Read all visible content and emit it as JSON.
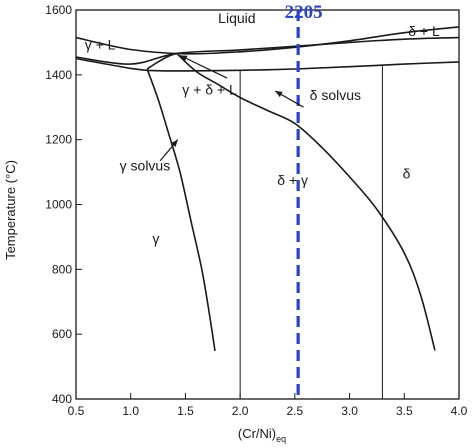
{
  "chart_data": {
    "type": "line",
    "title": "",
    "xlabel": "(Cr/Ni)eq",
    "xlabel_main": "(Cr/Ni)",
    "xlabel_sub": "eq",
    "ylabel": "Temperature (°C)",
    "xlim": [
      0.5,
      4.0
    ],
    "ylim": [
      400,
      1600
    ],
    "x_ticks": [
      "0.5",
      "1.0",
      "1.5",
      "2.0",
      "2.5",
      "3.0",
      "3.5",
      "4.0"
    ],
    "y_ticks": [
      "400",
      "600",
      "800",
      "1000",
      "1200",
      "1400",
      "1600"
    ],
    "grid": false,
    "series": [
      {
        "x": [
          0.5,
          1.0,
          1.5,
          2.0,
          2.5,
          3.0,
          3.5,
          4.0
        ],
        "y": [
          1515,
          1478,
          1465,
          1471,
          1485,
          1505,
          1530,
          1548
        ]
      },
      {
        "x": [
          0.5,
          1.0,
          1.42,
          2.0,
          2.5,
          3.0,
          3.5,
          4.0
        ],
        "y": [
          1455,
          1433,
          1466,
          1477,
          1488,
          1500,
          1510,
          1515
        ]
      },
      {
        "x": [
          0.5,
          1.0,
          1.2,
          1.5,
          2.0,
          2.5,
          3.0,
          3.5,
          4.0
        ],
        "y": [
          1450,
          1420,
          1413,
          1412,
          1414,
          1418,
          1425,
          1433,
          1440
        ]
      },
      {
        "x": [
          1.15,
          1.25,
          1.35,
          1.42
        ],
        "y": [
          1418,
          1440,
          1458,
          1466
        ]
      },
      {
        "x": [
          1.15,
          1.25,
          1.35,
          1.45,
          1.55,
          1.65,
          1.72,
          1.77
        ],
        "y": [
          1418,
          1325,
          1215,
          1100,
          950,
          800,
          660,
          548
        ]
      },
      {
        "x": [
          1.42,
          1.6,
          1.8,
          2.0,
          2.25,
          2.5,
          2.75,
          3.0,
          3.25,
          3.5,
          3.65,
          3.78
        ],
        "y": [
          1466,
          1410,
          1370,
          1330,
          1290,
          1250,
          1175,
          1085,
          985,
          850,
          720,
          550
        ]
      },
      {
        "x": [
          2.0,
          2.0
        ],
        "y": [
          1414,
          400
        ]
      },
      {
        "x": [
          3.3,
          3.3
        ],
        "y": [
          1430,
          400
        ]
      },
      {
        "x": [
          2.53,
          2.53
        ],
        "y": [
          1600,
          400
        ]
      }
    ],
    "annotations": [
      {
        "text": "Liquid",
        "x": 1.97,
        "y": 1560
      },
      {
        "text": "γ + L",
        "x": 0.72,
        "y": 1478
      },
      {
        "text": "δ + L",
        "x": 3.68,
        "y": 1520
      },
      {
        "text": "γ + δ + L",
        "x": 1.72,
        "y": 1340
      },
      {
        "text": "δ solvus",
        "x": 2.87,
        "y": 1322
      },
      {
        "text": "γ solvus",
        "x": 1.13,
        "y": 1105
      },
      {
        "text": "δ + γ",
        "x": 2.48,
        "y": 1060
      },
      {
        "text": "δ",
        "x": 3.52,
        "y": 1080
      },
      {
        "text": "γ",
        "x": 1.23,
        "y": 880
      },
      {
        "text": "2205",
        "x": 2.58,
        "y": 1575
      }
    ],
    "colors": {
      "lines": "#1a1a1a",
      "marker": "#2a44c8"
    }
  }
}
